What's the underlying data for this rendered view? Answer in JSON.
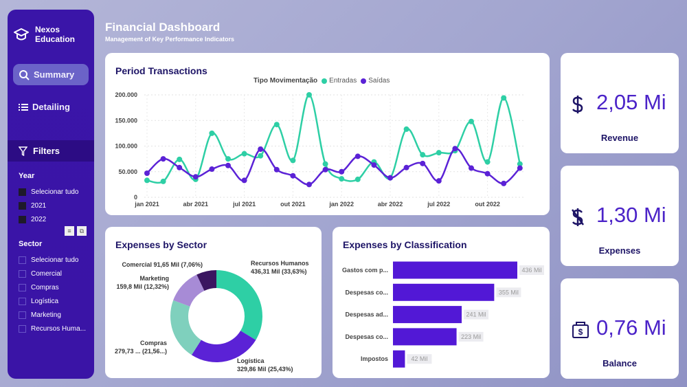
{
  "brand": {
    "name_line1": "Nexos",
    "name_line2": "Education"
  },
  "nav": [
    {
      "label": "Summary",
      "icon": "search-icon",
      "active": true
    },
    {
      "label": "Detailing",
      "icon": "list-icon",
      "active": false
    }
  ],
  "filters": {
    "label": "Filters",
    "year": {
      "title": "Year",
      "options": [
        {
          "label": "Selecionar tudo",
          "checked": true
        },
        {
          "label": "2021",
          "checked": true
        },
        {
          "label": "2022",
          "checked": true
        }
      ]
    },
    "sector": {
      "title": "Sector",
      "options": [
        {
          "label": "Selecionar tudo",
          "checked": false
        },
        {
          "label": "Comercial",
          "checked": false
        },
        {
          "label": "Compras",
          "checked": false
        },
        {
          "label": "Logística",
          "checked": false
        },
        {
          "label": "Marketing",
          "checked": false
        },
        {
          "label": "Recursos Huma...",
          "checked": false
        }
      ]
    }
  },
  "header": {
    "title": "Financial Dashboard",
    "subtitle": "Management of Key Performance Indicators"
  },
  "kpis": [
    {
      "value": "2,05 Mi",
      "label": "Revenue",
      "icon": "dollar-icon"
    },
    {
      "value": "1,30 Mi",
      "label": "Expenses",
      "icon": "dollar-off-icon"
    },
    {
      "value": "0,76 Mi",
      "label": "Balance",
      "icon": "money-bag-icon"
    }
  ],
  "colors": {
    "entradas": "#2ecfa5",
    "saidas": "#5b22d6",
    "bar": "#5218d6"
  },
  "chart_data": [
    {
      "type": "line",
      "title": "Period Transactions",
      "legend_title": "Tipo Movimentação",
      "legend_position": "top",
      "x_ticks": [
        "jan 2021",
        "abr 2021",
        "jul 2021",
        "out 2021",
        "jan 2022",
        "abr 2022",
        "jul 2022",
        "out 2022"
      ],
      "y_ticks": [
        "0",
        "50.000",
        "100.000",
        "150.000",
        "200.000"
      ],
      "ylim": [
        0,
        200000
      ],
      "grid": true,
      "x": [
        "jan 2021",
        "fev 2021",
        "mar 2021",
        "abr 2021",
        "mai 2021",
        "jun 2021",
        "jul 2021",
        "ago 2021",
        "set 2021",
        "out 2021",
        "nov 2021",
        "dez 2021",
        "jan 2022",
        "fev 2022",
        "mar 2022",
        "abr 2022",
        "mai 2022",
        "jun 2022",
        "jul 2022",
        "ago 2022",
        "set 2022",
        "out 2022",
        "nov 2022",
        "dez 2022"
      ],
      "series": [
        {
          "name": "Entradas",
          "values": [
            33000,
            31000,
            74000,
            35000,
            125000,
            75000,
            85000,
            81000,
            142000,
            72000,
            200000,
            65000,
            36000,
            35000,
            69000,
            38000,
            133000,
            83000,
            87000,
            91000,
            148000,
            69000,
            194000,
            65000
          ]
        },
        {
          "name": "Saídas",
          "values": [
            47000,
            75000,
            58000,
            40000,
            55000,
            62000,
            33000,
            94000,
            54000,
            42000,
            25000,
            54000,
            50000,
            80000,
            63000,
            38000,
            58000,
            66000,
            32000,
            95000,
            57000,
            46000,
            27000,
            57000
          ]
        }
      ]
    },
    {
      "type": "pie",
      "title": "Expenses by Sector",
      "slices": [
        {
          "name": "Recursos Humanos",
          "value_label": "436,31 Mil (33,63%)",
          "value": 436.31,
          "percent": 33.63,
          "color": "#2ecfa5"
        },
        {
          "name": "Logística",
          "value_label": "329,86 Mil (25,43%)",
          "value": 329.86,
          "percent": 25.43,
          "color": "#5b22d6"
        },
        {
          "name": "Compras",
          "value_label": "279,73 ... (21,56...)",
          "value": 279.73,
          "percent": 21.56,
          "color": "#7fd0bd"
        },
        {
          "name": "Marketing",
          "value_label": "159,8 Mil (12,32%)",
          "value": 159.8,
          "percent": 12.32,
          "color": "#a78bd6"
        },
        {
          "name": "Comercial",
          "value_label": "91,65 Mil (7,06%)",
          "value": 91.65,
          "percent": 7.06,
          "color": "#3a1560"
        }
      ]
    },
    {
      "type": "bar",
      "orientation": "horizontal",
      "title": "Expenses by Classification",
      "categories": [
        "Gastos com p...",
        "Despesas co...",
        "Despesas ad...",
        "Despesas co...",
        "Impostos"
      ],
      "values": [
        436,
        355,
        241,
        223,
        42
      ],
      "data_labels": [
        "436 Mil",
        "355 Mil",
        "241 Mil",
        "223 Mil",
        "42 Mil"
      ]
    }
  ]
}
